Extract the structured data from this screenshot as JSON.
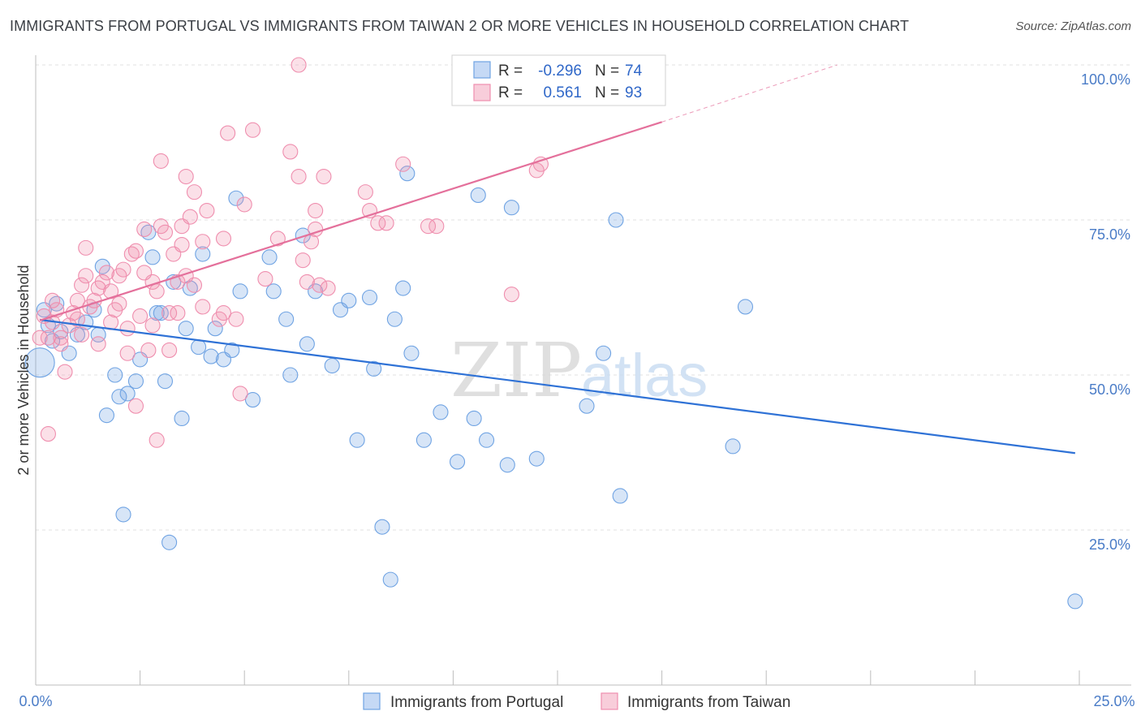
{
  "title": "IMMIGRANTS FROM PORTUGAL VS IMMIGRANTS FROM TAIWAN 2 OR MORE VEHICLES IN HOUSEHOLD CORRELATION CHART",
  "source": "Source: ZipAtlas.com",
  "watermark": {
    "zip": "ZIP",
    "atlas": "atlas"
  },
  "legend_top": [
    {
      "r_label": "R =",
      "r_value": "-0.296",
      "n_label": "N =",
      "n_value": "74",
      "color": "#6fa3e3"
    },
    {
      "r_label": "R =",
      "r_value": "0.561",
      "n_label": "N =",
      "n_value": "93",
      "color": "#ef8eae"
    }
  ],
  "legend_bottom": [
    {
      "label": "Immigrants from Portugal",
      "color": "#6fa3e3"
    },
    {
      "label": "Immigrants from Taiwan",
      "color": "#ef8eae"
    }
  ],
  "chart_data": {
    "type": "scatter",
    "title": "IMMIGRANTS FROM PORTUGAL VS IMMIGRANTS FROM TAIWAN 2 OR MORE VEHICLES IN HOUSEHOLD CORRELATION CHART",
    "xlabel": "",
    "ylabel": "2 or more Vehicles in Household",
    "xlim": [
      0,
      25
    ],
    "ylim": [
      0,
      100
    ],
    "x_tick_labels": [
      "0.0%",
      "25.0%"
    ],
    "y_tick_labels": [
      "100.0%",
      "75.0%",
      "50.0%",
      "25.0%"
    ],
    "y_ticks": [
      100,
      75,
      50,
      25
    ],
    "grid": true,
    "series": [
      {
        "name": "Immigrants from Portugal",
        "color": "#6fa3e3",
        "trend": {
          "x": [
            0.1,
            24.9
          ],
          "y": [
            58.9,
            37.4
          ]
        },
        "points": [
          {
            "x": 0.1,
            "y": 52,
            "big": true
          },
          {
            "x": 0.2,
            "y": 60.5
          },
          {
            "x": 0.3,
            "y": 58
          },
          {
            "x": 0.4,
            "y": 55.5
          },
          {
            "x": 0.5,
            "y": 61.5
          },
          {
            "x": 0.6,
            "y": 57
          },
          {
            "x": 0.8,
            "y": 53.5
          },
          {
            "x": 1.0,
            "y": 56.5
          },
          {
            "x": 1.2,
            "y": 58.5
          },
          {
            "x": 1.4,
            "y": 60.5
          },
          {
            "x": 1.5,
            "y": 56.5
          },
          {
            "x": 1.6,
            "y": 67.5
          },
          {
            "x": 1.7,
            "y": 43.5
          },
          {
            "x": 1.9,
            "y": 50
          },
          {
            "x": 2.0,
            "y": 46.5
          },
          {
            "x": 2.1,
            "y": 27.5
          },
          {
            "x": 2.2,
            "y": 47
          },
          {
            "x": 2.4,
            "y": 49
          },
          {
            "x": 2.5,
            "y": 52.5
          },
          {
            "x": 2.7,
            "y": 73
          },
          {
            "x": 2.8,
            "y": 69
          },
          {
            "x": 2.9,
            "y": 60
          },
          {
            "x": 3.0,
            "y": 60
          },
          {
            "x": 3.1,
            "y": 49
          },
          {
            "x": 3.2,
            "y": 23
          },
          {
            "x": 3.3,
            "y": 65
          },
          {
            "x": 3.5,
            "y": 43
          },
          {
            "x": 3.6,
            "y": 57.5
          },
          {
            "x": 3.7,
            "y": 64
          },
          {
            "x": 3.9,
            "y": 54.5
          },
          {
            "x": 4.0,
            "y": 69.5
          },
          {
            "x": 4.2,
            "y": 53
          },
          {
            "x": 4.3,
            "y": 57.5
          },
          {
            "x": 4.5,
            "y": 52.5
          },
          {
            "x": 4.7,
            "y": 54
          },
          {
            "x": 4.8,
            "y": 78.5
          },
          {
            "x": 4.9,
            "y": 63.5
          },
          {
            "x": 5.2,
            "y": 46
          },
          {
            "x": 5.6,
            "y": 69
          },
          {
            "x": 5.7,
            "y": 63.5
          },
          {
            "x": 6.0,
            "y": 59
          },
          {
            "x": 6.1,
            "y": 50
          },
          {
            "x": 6.4,
            "y": 72.5
          },
          {
            "x": 6.5,
            "y": 55
          },
          {
            "x": 6.7,
            "y": 63.5
          },
          {
            "x": 7.1,
            "y": 51.5
          },
          {
            "x": 7.3,
            "y": 60.5
          },
          {
            "x": 7.5,
            "y": 62
          },
          {
            "x": 7.7,
            "y": 39.5
          },
          {
            "x": 8.0,
            "y": 62.5
          },
          {
            "x": 8.1,
            "y": 51
          },
          {
            "x": 8.3,
            "y": 25.5
          },
          {
            "x": 8.5,
            "y": 17
          },
          {
            "x": 8.6,
            "y": 59
          },
          {
            "x": 8.8,
            "y": 64
          },
          {
            "x": 8.9,
            "y": 82.5
          },
          {
            "x": 9.0,
            "y": 53.5
          },
          {
            "x": 9.3,
            "y": 39.5
          },
          {
            "x": 9.7,
            "y": 44
          },
          {
            "x": 10.1,
            "y": 36
          },
          {
            "x": 10.5,
            "y": 43
          },
          {
            "x": 10.6,
            "y": 79
          },
          {
            "x": 10.8,
            "y": 39.5
          },
          {
            "x": 11.3,
            "y": 35.5
          },
          {
            "x": 11.4,
            "y": 77
          },
          {
            "x": 12.0,
            "y": 36.5
          },
          {
            "x": 13.2,
            "y": 45
          },
          {
            "x": 13.6,
            "y": 53.5
          },
          {
            "x": 13.9,
            "y": 75
          },
          {
            "x": 14.0,
            "y": 30.5
          },
          {
            "x": 16.7,
            "y": 38.5
          },
          {
            "x": 17.0,
            "y": 61
          },
          {
            "x": 24.9,
            "y": 13.5
          }
        ]
      },
      {
        "name": "Immigrants from Taiwan",
        "color": "#ef8eae",
        "trend": {
          "x": [
            0.1,
            15.0
          ],
          "y": [
            58.8,
            90.8
          ]
        },
        "trend_dashed": {
          "x": [
            15.0,
            19.2
          ],
          "y": [
            90.8,
            100
          ]
        },
        "points": [
          {
            "x": 0.1,
            "y": 56
          },
          {
            "x": 0.2,
            "y": 59.5
          },
          {
            "x": 0.3,
            "y": 56
          },
          {
            "x": 0.3,
            "y": 40.5
          },
          {
            "x": 0.4,
            "y": 58.5
          },
          {
            "x": 0.5,
            "y": 60.5
          },
          {
            "x": 0.6,
            "y": 56
          },
          {
            "x": 0.6,
            "y": 55
          },
          {
            "x": 0.7,
            "y": 50.5
          },
          {
            "x": 0.8,
            "y": 58
          },
          {
            "x": 0.9,
            "y": 60
          },
          {
            "x": 1.0,
            "y": 62
          },
          {
            "x": 1.0,
            "y": 59
          },
          {
            "x": 1.1,
            "y": 64.5
          },
          {
            "x": 1.2,
            "y": 70.5
          },
          {
            "x": 1.2,
            "y": 66
          },
          {
            "x": 1.3,
            "y": 61
          },
          {
            "x": 1.4,
            "y": 62
          },
          {
            "x": 1.5,
            "y": 64
          },
          {
            "x": 1.5,
            "y": 55
          },
          {
            "x": 1.6,
            "y": 65
          },
          {
            "x": 1.7,
            "y": 66.5
          },
          {
            "x": 1.8,
            "y": 58.5
          },
          {
            "x": 1.8,
            "y": 63.5
          },
          {
            "x": 1.9,
            "y": 60.5
          },
          {
            "x": 2.0,
            "y": 66
          },
          {
            "x": 2.1,
            "y": 67
          },
          {
            "x": 2.2,
            "y": 57.5
          },
          {
            "x": 2.2,
            "y": 53.5
          },
          {
            "x": 2.3,
            "y": 69.5
          },
          {
            "x": 2.4,
            "y": 70
          },
          {
            "x": 2.4,
            "y": 45
          },
          {
            "x": 2.5,
            "y": 59.5
          },
          {
            "x": 2.6,
            "y": 73.5
          },
          {
            "x": 2.6,
            "y": 66.5
          },
          {
            "x": 2.7,
            "y": 54
          },
          {
            "x": 2.8,
            "y": 58
          },
          {
            "x": 2.8,
            "y": 65
          },
          {
            "x": 2.9,
            "y": 63.5
          },
          {
            "x": 2.9,
            "y": 39.5
          },
          {
            "x": 3.0,
            "y": 74
          },
          {
            "x": 3.0,
            "y": 84.5
          },
          {
            "x": 3.1,
            "y": 73
          },
          {
            "x": 3.2,
            "y": 54
          },
          {
            "x": 3.2,
            "y": 60
          },
          {
            "x": 3.3,
            "y": 69.5
          },
          {
            "x": 3.4,
            "y": 65
          },
          {
            "x": 3.5,
            "y": 71
          },
          {
            "x": 3.5,
            "y": 74
          },
          {
            "x": 3.6,
            "y": 82
          },
          {
            "x": 3.6,
            "y": 66
          },
          {
            "x": 3.7,
            "y": 75.5
          },
          {
            "x": 3.8,
            "y": 64.5
          },
          {
            "x": 3.8,
            "y": 79.5
          },
          {
            "x": 4.0,
            "y": 71.5
          },
          {
            "x": 4.0,
            "y": 61
          },
          {
            "x": 4.1,
            "y": 76.5
          },
          {
            "x": 4.4,
            "y": 59
          },
          {
            "x": 4.5,
            "y": 72
          },
          {
            "x": 4.5,
            "y": 60
          },
          {
            "x": 4.6,
            "y": 89
          },
          {
            "x": 4.8,
            "y": 59
          },
          {
            "x": 4.9,
            "y": 47
          },
          {
            "x": 5.0,
            "y": 77.5
          },
          {
            "x": 5.2,
            "y": 89.5
          },
          {
            "x": 5.5,
            "y": 65.5
          },
          {
            "x": 5.8,
            "y": 72
          },
          {
            "x": 6.1,
            "y": 86
          },
          {
            "x": 6.3,
            "y": 82
          },
          {
            "x": 6.3,
            "y": 100
          },
          {
            "x": 6.4,
            "y": 68.5
          },
          {
            "x": 6.5,
            "y": 65
          },
          {
            "x": 6.6,
            "y": 71.5
          },
          {
            "x": 6.7,
            "y": 73.5
          },
          {
            "x": 6.7,
            "y": 76.5
          },
          {
            "x": 6.8,
            "y": 64.5
          },
          {
            "x": 6.9,
            "y": 82
          },
          {
            "x": 7.0,
            "y": 64
          },
          {
            "x": 7.9,
            "y": 79.5
          },
          {
            "x": 8.0,
            "y": 76.5
          },
          {
            "x": 8.2,
            "y": 74.5
          },
          {
            "x": 8.4,
            "y": 74.5
          },
          {
            "x": 8.8,
            "y": 84
          },
          {
            "x": 9.4,
            "y": 74
          },
          {
            "x": 9.6,
            "y": 74
          },
          {
            "x": 11.4,
            "y": 63
          },
          {
            "x": 12.0,
            "y": 83
          },
          {
            "x": 12.1,
            "y": 84
          },
          {
            "x": 0.4,
            "y": 62
          },
          {
            "x": 1.1,
            "y": 56.5
          },
          {
            "x": 2.0,
            "y": 61.5
          },
          {
            "x": 3.4,
            "y": 60
          }
        ]
      }
    ]
  }
}
